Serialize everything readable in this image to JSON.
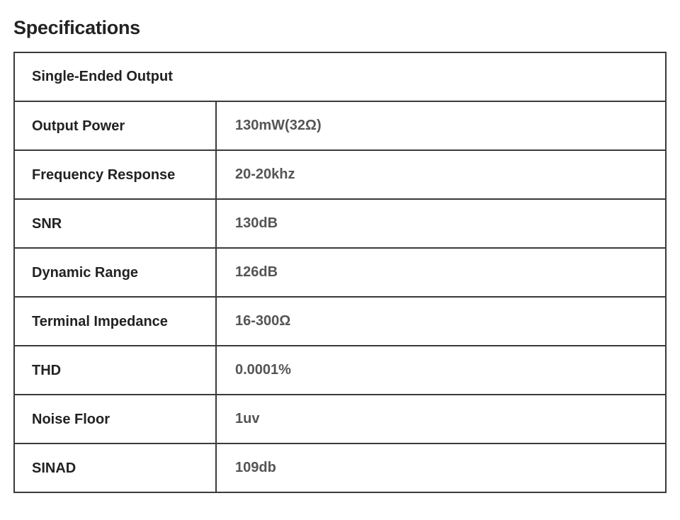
{
  "title": "Specifications",
  "table": {
    "section_header": "Single-Ended Output",
    "rows": [
      {
        "label": "Output Power",
        "value": "130mW(32Ω)"
      },
      {
        "label": "Frequency Response",
        "value": "20-20khz"
      },
      {
        "label": "SNR",
        "value": "130dB"
      },
      {
        "label": "Dynamic Range",
        "value": "126dB"
      },
      {
        "label": "Terminal Impedance",
        "value": "16-300Ω"
      },
      {
        "label": "THD",
        "value": "0.0001%"
      },
      {
        "label": "Noise Floor",
        "value": "1uv"
      },
      {
        "label": "SINAD",
        "value": "109db"
      }
    ]
  }
}
